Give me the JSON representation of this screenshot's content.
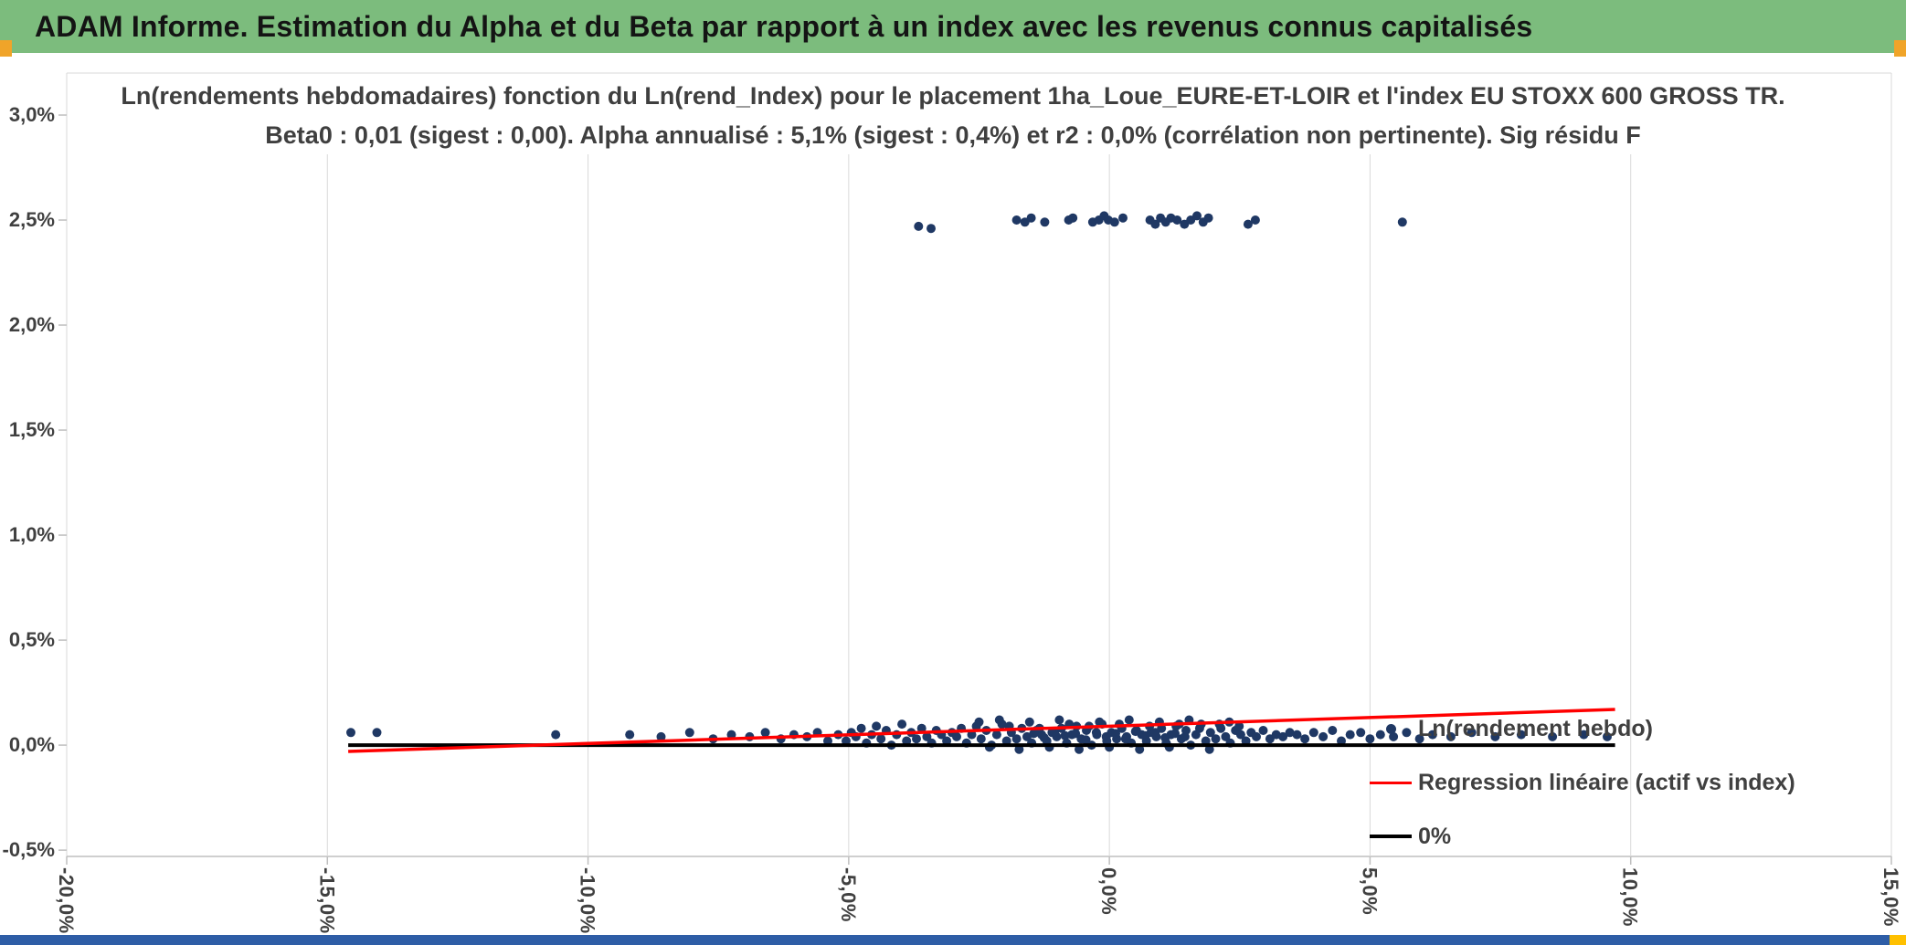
{
  "header": {
    "title": "ADAM Informe. Estimation du Alpha et du Beta par rapport à un index avec les revenus connus capitalisés"
  },
  "colors": {
    "header_bg": "#7CBC7D",
    "header_text": "#141414",
    "corner_accent": "#F0A429",
    "bottom_bar": "#2E5DA6",
    "bottom_accent": "#FFC000",
    "grid": "#D9D9D9",
    "axis_line": "#BFBFBF",
    "axis_text": "#404040",
    "scatter": "#1F3864",
    "regression": "#FF0000",
    "zero_line": "#000000"
  },
  "chart_data": {
    "type": "scatter",
    "title": "Ln(rendements hebdomadaires) fonction du Ln(rend_Index) pour le placement 1ha_Loue_EURE-ET-LOIR et l'index EU STOXX 600 GROSS TR.",
    "subtitle": "Beta0 : 0,01 (sigest : 0,00). Alpha annualisé : 5,1% (sigest : 0,4%) et r2 : 0,0% (corrélation non pertinente). Sig résidu F",
    "xlabel": "",
    "ylabel": "",
    "units": "percent",
    "grid": "vertical-major",
    "legend_position": "inside-bottom-right",
    "xlim": [
      -20,
      15
    ],
    "ylim": [
      -0.53,
      3.2
    ],
    "x_ticks": [
      {
        "v": -20,
        "label": "-20,0%"
      },
      {
        "v": -15,
        "label": "-15,0%"
      },
      {
        "v": -10,
        "label": "-10,0%"
      },
      {
        "v": -5,
        "label": "-5,0%"
      },
      {
        "v": 0,
        "label": "0,0%"
      },
      {
        "v": 5,
        "label": "5,0%"
      },
      {
        "v": 10,
        "label": "10,0%"
      },
      {
        "v": 15,
        "label": "15,0%"
      }
    ],
    "y_ticks": [
      {
        "v": 3.0,
        "label": "3,0%"
      },
      {
        "v": 2.5,
        "label": "2,5%"
      },
      {
        "v": 2.0,
        "label": "2,0%"
      },
      {
        "v": 1.5,
        "label": "1,5%"
      },
      {
        "v": 1.0,
        "label": "1,0%"
      },
      {
        "v": 0.5,
        "label": "0,5%"
      },
      {
        "v": 0.0,
        "label": "0,0%"
      },
      {
        "v": -0.5,
        "label": "-0,5%"
      }
    ],
    "legend": [
      {
        "label": "Ln(rendement hebdo)",
        "marker": "dot",
        "color": "#1F3864"
      },
      {
        "label": "Regression linéaire (actif vs index)",
        "marker": "line",
        "color": "#FF0000"
      },
      {
        "label": "0%",
        "marker": "line",
        "color": "#000000"
      }
    ],
    "series": [
      {
        "name": "Ln(rendement hebdo)",
        "type": "scatter",
        "color": "#1F3864",
        "points": [
          [
            -14.55,
            0.06
          ],
          [
            -14.05,
            0.06
          ],
          [
            -10.62,
            0.05
          ],
          [
            -9.2,
            0.05
          ],
          [
            -8.6,
            0.04
          ],
          [
            -8.05,
            0.06
          ],
          [
            -7.6,
            0.03
          ],
          [
            -7.25,
            0.05
          ],
          [
            -6.9,
            0.04
          ],
          [
            -6.6,
            0.06
          ],
          [
            -6.3,
            0.03
          ],
          [
            -6.05,
            0.05
          ],
          [
            -5.8,
            0.04
          ],
          [
            -5.6,
            0.06
          ],
          [
            -5.4,
            0.02
          ],
          [
            -5.2,
            0.05
          ],
          [
            -5.05,
            0.02
          ],
          [
            -4.95,
            0.06
          ],
          [
            -4.86,
            0.04
          ],
          [
            -4.76,
            0.08
          ],
          [
            -4.66,
            0.01
          ],
          [
            -4.56,
            0.05
          ],
          [
            -4.47,
            0.09
          ],
          [
            -4.38,
            0.03
          ],
          [
            -4.28,
            0.07
          ],
          [
            -4.18,
            0.0
          ],
          [
            -4.08,
            0.05
          ],
          [
            -3.98,
            0.1
          ],
          [
            -3.89,
            0.02
          ],
          [
            -3.8,
            0.06
          ],
          [
            -3.7,
            0.03
          ],
          [
            -3.6,
            0.08
          ],
          [
            -3.5,
            0.04
          ],
          [
            -3.41,
            0.01
          ],
          [
            -3.32,
            0.07
          ],
          [
            -3.22,
            0.05
          ],
          [
            -3.12,
            0.02
          ],
          [
            -3.02,
            0.06
          ],
          [
            -2.93,
            0.04
          ],
          [
            -2.84,
            0.08
          ],
          [
            -2.74,
            0.01
          ],
          [
            -2.64,
            0.05
          ],
          [
            -2.55,
            0.09
          ],
          [
            -2.46,
            0.03
          ],
          [
            -2.36,
            0.07
          ],
          [
            -2.26,
            0.0
          ],
          [
            -2.16,
            0.05
          ],
          [
            -2.06,
            0.1
          ],
          [
            -1.97,
            0.02
          ],
          [
            -1.88,
            0.06
          ],
          [
            -1.78,
            0.03
          ],
          [
            -1.68,
            0.08
          ],
          [
            -1.58,
            0.04
          ],
          [
            -1.49,
            0.01
          ],
          [
            -1.4,
            0.07
          ],
          [
            -1.3,
            0.05
          ],
          [
            -1.2,
            0.02
          ],
          [
            -1.1,
            0.06
          ],
          [
            -1.01,
            0.04
          ],
          [
            -0.92,
            0.08
          ],
          [
            -0.82,
            0.01
          ],
          [
            -0.72,
            0.05
          ],
          [
            -0.63,
            0.09
          ],
          [
            -0.54,
            0.03
          ],
          [
            -0.44,
            0.07
          ],
          [
            -0.34,
            0.0
          ],
          [
            -0.24,
            0.05
          ],
          [
            -0.14,
            0.1
          ],
          [
            -0.05,
            0.02
          ],
          [
            0.04,
            0.06
          ],
          [
            0.14,
            0.03
          ],
          [
            0.24,
            0.08
          ],
          [
            0.33,
            0.04
          ],
          [
            0.42,
            0.01
          ],
          [
            0.52,
            0.07
          ],
          [
            0.62,
            0.05
          ],
          [
            0.71,
            0.02
          ],
          [
            0.8,
            0.06
          ],
          [
            0.9,
            0.04
          ],
          [
            1.0,
            0.08
          ],
          [
            1.09,
            0.01
          ],
          [
            1.18,
            0.05
          ],
          [
            1.28,
            0.09
          ],
          [
            1.38,
            0.03
          ],
          [
            1.47,
            0.07
          ],
          [
            1.56,
            0.0
          ],
          [
            1.66,
            0.05
          ],
          [
            1.76,
            0.1
          ],
          [
            1.85,
            0.02
          ],
          [
            1.94,
            0.06
          ],
          [
            2.04,
            0.03
          ],
          [
            2.14,
            0.08
          ],
          [
            2.23,
            0.04
          ],
          [
            2.32,
            0.01
          ],
          [
            2.42,
            0.07
          ],
          [
            2.52,
            0.05
          ],
          [
            2.62,
            0.02
          ],
          [
            2.72,
            0.06
          ],
          [
            2.82,
            0.04
          ],
          [
            2.95,
            0.07
          ],
          [
            3.08,
            0.03
          ],
          [
            3.2,
            0.05
          ],
          [
            3.33,
            0.04
          ],
          [
            3.46,
            0.06
          ],
          [
            -2.5,
            0.11
          ],
          [
            -2.3,
            -0.01
          ],
          [
            -2.11,
            0.12
          ],
          [
            -1.92,
            0.09
          ],
          [
            -1.73,
            -0.02
          ],
          [
            -1.53,
            0.11
          ],
          [
            -1.34,
            0.08
          ],
          [
            -1.15,
            -0.01
          ],
          [
            -0.96,
            0.12
          ],
          [
            -0.77,
            0.1
          ],
          [
            -0.58,
            -0.02
          ],
          [
            -0.39,
            0.09
          ],
          [
            -0.19,
            0.11
          ],
          [
            0.0,
            -0.01
          ],
          [
            0.19,
            0.1
          ],
          [
            0.38,
            0.12
          ],
          [
            0.58,
            -0.02
          ],
          [
            0.77,
            0.09
          ],
          [
            0.96,
            0.11
          ],
          [
            1.15,
            -0.01
          ],
          [
            1.34,
            0.1
          ],
          [
            1.53,
            0.12
          ],
          [
            1.73,
            0.08
          ],
          [
            1.92,
            -0.02
          ],
          [
            2.11,
            0.1
          ],
          [
            2.3,
            0.11
          ],
          [
            2.49,
            0.09
          ],
          [
            -1.45,
            0.055
          ],
          [
            -1.25,
            0.035
          ],
          [
            -1.05,
            0.065
          ],
          [
            -0.85,
            0.045
          ],
          [
            -0.65,
            0.055
          ],
          [
            -0.45,
            0.025
          ],
          [
            -0.25,
            0.06
          ],
          [
            -0.06,
            0.04
          ],
          [
            0.12,
            0.055
          ],
          [
            0.31,
            0.03
          ],
          [
            0.5,
            0.065
          ],
          [
            0.69,
            0.045
          ],
          [
            0.88,
            0.06
          ],
          [
            1.07,
            0.035
          ],
          [
            1.26,
            0.055
          ],
          [
            1.45,
            0.04
          ],
          [
            3.6,
            0.05
          ],
          [
            3.75,
            0.03
          ],
          [
            3.92,
            0.06
          ],
          [
            4.1,
            0.04
          ],
          [
            4.28,
            0.07
          ],
          [
            4.45,
            0.02
          ],
          [
            4.62,
            0.05
          ],
          [
            4.82,
            0.06
          ],
          [
            5.0,
            0.03
          ],
          [
            5.2,
            0.05
          ],
          [
            5.45,
            0.04
          ],
          [
            5.7,
            0.06
          ],
          [
            5.95,
            0.03
          ],
          [
            6.2,
            0.05
          ],
          [
            6.55,
            0.04
          ],
          [
            6.95,
            0.06
          ],
          [
            7.4,
            0.04
          ],
          [
            7.9,
            0.05
          ],
          [
            8.5,
            0.04
          ],
          [
            9.1,
            0.05
          ],
          [
            9.55,
            0.04
          ],
          [
            -3.66,
            2.47
          ],
          [
            -3.42,
            2.46
          ],
          [
            -1.78,
            2.5
          ],
          [
            -1.62,
            2.49
          ],
          [
            -1.5,
            2.51
          ],
          [
            -1.24,
            2.49
          ],
          [
            -0.78,
            2.5
          ],
          [
            -0.7,
            2.51
          ],
          [
            -0.32,
            2.49
          ],
          [
            -0.2,
            2.5
          ],
          [
            -0.1,
            2.52
          ],
          [
            -0.02,
            2.5
          ],
          [
            0.1,
            2.49
          ],
          [
            0.26,
            2.51
          ],
          [
            0.78,
            2.5
          ],
          [
            0.88,
            2.48
          ],
          [
            0.98,
            2.51
          ],
          [
            1.08,
            2.49
          ],
          [
            1.18,
            2.51
          ],
          [
            1.3,
            2.5
          ],
          [
            1.44,
            2.48
          ],
          [
            1.56,
            2.5
          ],
          [
            1.68,
            2.52
          ],
          [
            1.8,
            2.49
          ],
          [
            1.9,
            2.51
          ],
          [
            2.66,
            2.48
          ],
          [
            2.8,
            2.5
          ],
          [
            5.62,
            2.49
          ]
        ]
      },
      {
        "name": "0%",
        "type": "line",
        "color": "#000000",
        "width": 4,
        "points": [
          [
            -14.6,
            0
          ],
          [
            9.7,
            0
          ]
        ]
      },
      {
        "name": "Regression linéaire (actif vs index)",
        "type": "line",
        "color": "#FF0000",
        "width": 3.5,
        "points": [
          [
            -14.6,
            -0.03
          ],
          [
            9.7,
            0.17
          ]
        ]
      }
    ]
  }
}
